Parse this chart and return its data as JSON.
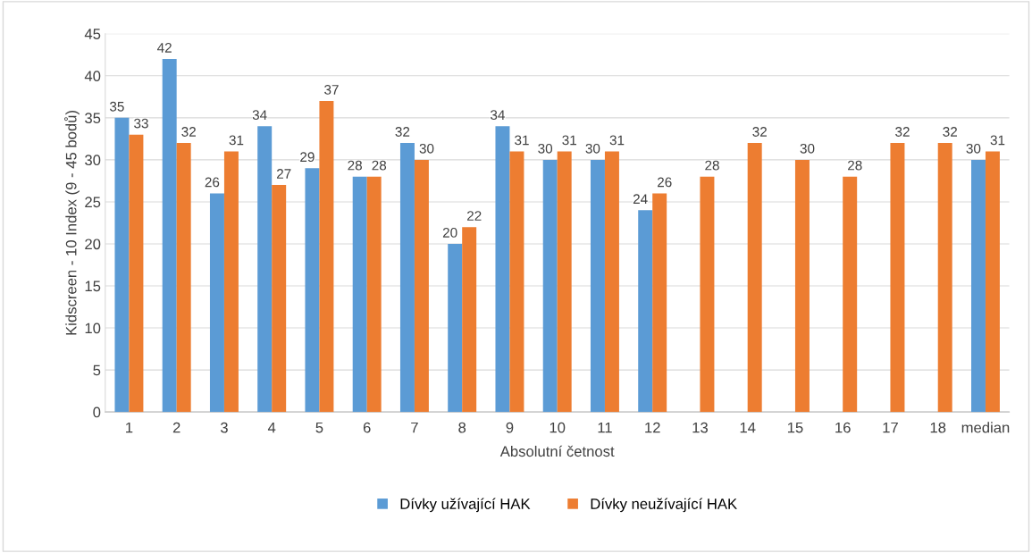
{
  "chart_data": {
    "type": "bar",
    "xlabel": "Absolutní četnost",
    "ylabel": "Kidscreen - 10 Index (9 - 45 bodů)",
    "categories": [
      "1",
      "2",
      "3",
      "4",
      "5",
      "6",
      "7",
      "8",
      "9",
      "10",
      "11",
      "12",
      "13",
      "14",
      "15",
      "16",
      "17",
      "18",
      "median"
    ],
    "series": [
      {
        "name": "Dívky užívající HAK",
        "color": "#5b9bd5",
        "values": [
          35,
          42,
          26,
          34,
          29,
          28,
          32,
          20,
          34,
          30,
          30,
          24,
          null,
          null,
          null,
          null,
          null,
          null,
          30
        ]
      },
      {
        "name": "Dívky neužívající HAK",
        "color": "#ed7d31",
        "values": [
          33,
          32,
          31,
          27,
          37,
          28,
          30,
          22,
          31,
          31,
          31,
          26,
          28,
          32,
          30,
          28,
          32,
          32,
          31
        ]
      }
    ],
    "ylim": [
      0,
      45
    ],
    "yticks": [
      0,
      5,
      10,
      15,
      20,
      25,
      30,
      35,
      40,
      45
    ],
    "grid": "y",
    "legend": "bottom",
    "data_labels": true
  }
}
